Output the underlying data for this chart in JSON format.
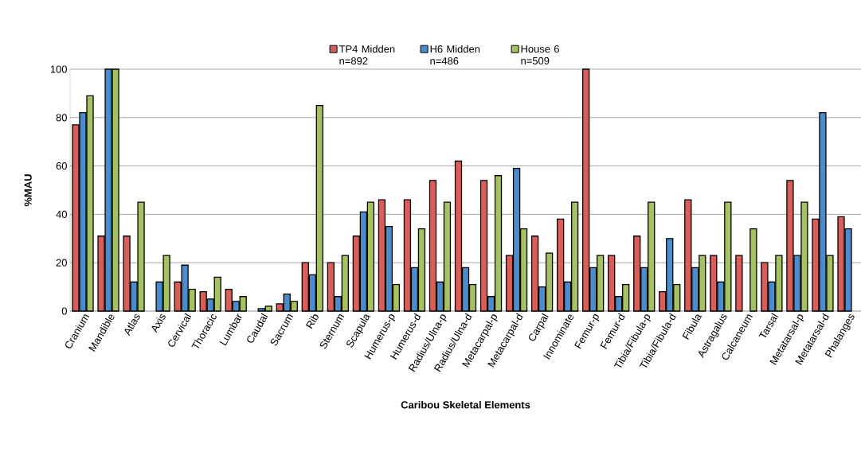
{
  "chart_data": {
    "type": "bar",
    "xlabel": "Caribou Skeletal Elements",
    "ylabel": "%MAU",
    "categories": [
      "Cranium",
      "Mandible",
      "Atlas",
      "Axis",
      "Cervical",
      "Thoracic",
      "Lumbar",
      "Caudal",
      "Sacrum",
      "Rib",
      "Sternum",
      "Scapula",
      "Humerus-p",
      "Humerus-d",
      "Radius/Ulna-p",
      "Radius/Ulna-d",
      "Metacarpal-p",
      "Metacarpal-d",
      "Carpal",
      "Innominate",
      "Femur-p",
      "Femur-d",
      "Tibia/Fibula-p",
      "Tibia/Fibula-d",
      "Fibula",
      "Astragalus",
      "Calcaneum",
      "Tarsal",
      "Metatarsal-p",
      "Metatarsal-d",
      "Phalanges"
    ],
    "series": [
      {
        "name": "TP4 Midden n=892",
        "color": "#d65f5a",
        "values": [
          77,
          31,
          31,
          null,
          12,
          8,
          9,
          null,
          3,
          20,
          20,
          31,
          46,
          46,
          54,
          62,
          54,
          23,
          31,
          38,
          100,
          23,
          31,
          8,
          46,
          23,
          23,
          20,
          54,
          38,
          39
        ]
      },
      {
        "name": "H6 Midden n=486",
        "color": "#4a8ccc",
        "values": [
          82,
          100,
          12,
          12,
          19,
          5,
          4,
          1,
          7,
          15,
          6,
          41,
          35,
          18,
          12,
          18,
          6,
          59,
          10,
          12,
          18,
          6,
          18,
          30,
          18,
          12,
          null,
          12,
          23,
          82,
          34
        ]
      },
      {
        "name": "House 6 n=509",
        "color": "#a5c262",
        "values": [
          89,
          100,
          45,
          23,
          9,
          14,
          6,
          2,
          4,
          85,
          23,
          45,
          11,
          34,
          45,
          11,
          56,
          34,
          24,
          45,
          23,
          11,
          45,
          11,
          23,
          45,
          34,
          23,
          45,
          23,
          null
        ]
      }
    ],
    "ylim": [
      0,
      100
    ],
    "yticks": [
      0,
      20,
      40,
      60,
      80,
      100
    ],
    "grid": "y",
    "legend": "top"
  }
}
